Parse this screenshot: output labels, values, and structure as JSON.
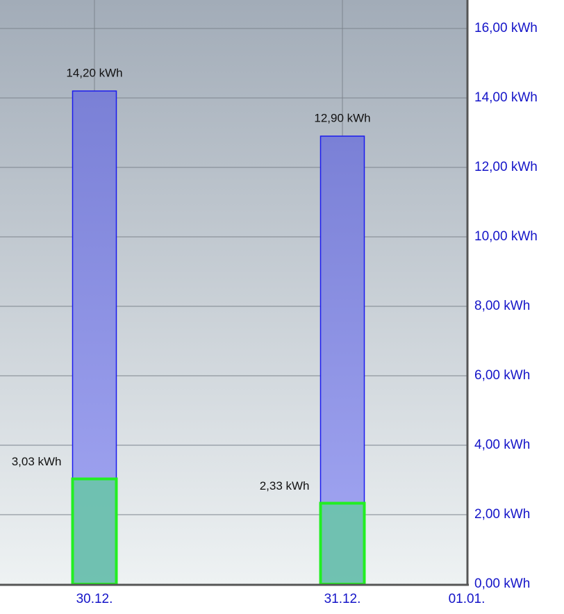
{
  "chart_data": {
    "type": "bar",
    "categories": [
      "30.12.",
      "31.12.",
      "01.01."
    ],
    "series": [
      {
        "color": "#1a1aee",
        "values": [
          14.2,
          12.9,
          null
        ],
        "value_labels": [
          "14,20 kWh",
          "12,90 kWh",
          null
        ]
      },
      {
        "color": "#22ee22",
        "values": [
          3.03,
          2.33,
          null
        ],
        "value_labels": [
          "3,03 kWh",
          "2,33 kWh",
          null
        ]
      }
    ],
    "ylim": [
      0,
      16.82
    ],
    "yticks": [
      {
        "value": 0,
        "label": "0,00 kWh"
      },
      {
        "value": 2,
        "label": "2,00 kWh"
      },
      {
        "value": 4,
        "label": "4,00 kWh"
      },
      {
        "value": 6,
        "label": "6,00 kWh"
      },
      {
        "value": 8,
        "label": "8,00 kWh"
      },
      {
        "value": 10,
        "label": "10,00 kWh"
      },
      {
        "value": 12,
        "label": "12,00 kWh"
      },
      {
        "value": 14,
        "label": "14,00 kWh"
      },
      {
        "value": 16,
        "label": "16,00 kWh"
      }
    ],
    "grid": true
  }
}
